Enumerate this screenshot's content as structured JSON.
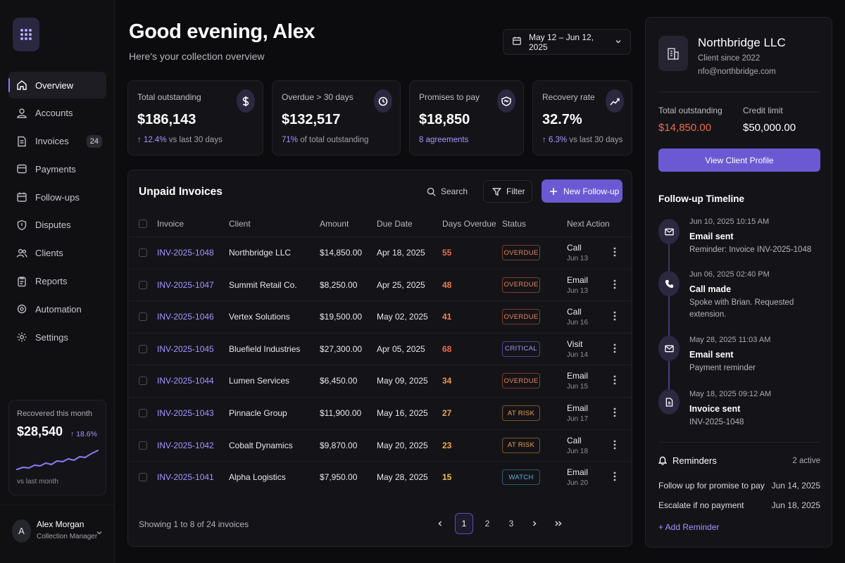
{
  "nav": [
    {
      "label": "Overview",
      "icon": "home-icon",
      "active": true
    },
    {
      "label": "Accounts",
      "icon": "accounts-icon"
    },
    {
      "label": "Invoices",
      "icon": "invoice-icon",
      "badge": "24"
    },
    {
      "label": "Payments",
      "icon": "wallet-icon"
    },
    {
      "label": "Follow-ups",
      "icon": "calendar-icon"
    },
    {
      "label": "Disputes",
      "icon": "shield-icon"
    },
    {
      "label": "Clients",
      "icon": "users-icon"
    },
    {
      "label": "Reports",
      "icon": "clipboard-icon"
    },
    {
      "label": "Automation",
      "icon": "automation-icon"
    },
    {
      "label": "Settings",
      "icon": "gear-icon"
    }
  ],
  "recovered": {
    "label": "Recovered this month",
    "value": "$28,540",
    "delta": "↑ 18.6%",
    "sub": "vs last month"
  },
  "user": {
    "initial": "A",
    "name": "Alex Morgan",
    "role": "Collection Manager"
  },
  "header": {
    "greeting": "Good evening, Alex",
    "subtitle": "Here's your collection overview",
    "date_range": "May 12 – Jun 12, 2025"
  },
  "kpis": [
    {
      "label": "Total outstanding",
      "value": "$186,143",
      "sub_accent": "↑ 12.4%",
      "sub_rest": " vs last 30 days",
      "icon": "dollar-icon"
    },
    {
      "label": "Overdue > 30 days",
      "value": "$132,517",
      "sub_accent": "71%",
      "sub_rest": " of total outstanding",
      "icon": "clock-icon"
    },
    {
      "label": "Promises to pay",
      "value": "$18,850",
      "sub_accent": "8 agreements",
      "sub_rest": "",
      "icon": "handshake-icon"
    },
    {
      "label": "Recovery rate",
      "value": "32.7%",
      "sub_accent": "↑ 6.3%",
      "sub_rest": " vs last 30 days",
      "icon": "trend-up-icon"
    }
  ],
  "table": {
    "title": "Unpaid Invoices",
    "search_label": "Search",
    "filter_label": "Filter",
    "new_label": "New Follow-up",
    "columns": [
      "Invoice",
      "Client",
      "Amount",
      "Due Date",
      "Days Overdue",
      "Status",
      "Next Action"
    ],
    "rows": [
      {
        "invoice": "INV-2025-1048",
        "client": "Northbridge LLC",
        "amount": "$14,850.00",
        "due": "Apr 18, 2025",
        "days": "55",
        "status": "OVERDUE",
        "action": "Call",
        "action_date": "Jun 13"
      },
      {
        "invoice": "INV-2025-1047",
        "client": "Summit Retail Co.",
        "amount": "$8,250.00",
        "due": "Apr 25, 2025",
        "days": "48",
        "status": "OVERDUE",
        "action": "Email",
        "action_date": "Jun 13"
      },
      {
        "invoice": "INV-2025-1046",
        "client": "Vertex Solutions",
        "amount": "$19,500.00",
        "due": "May 02, 2025",
        "days": "41",
        "status": "OVERDUE",
        "action": "Call",
        "action_date": "Jun 16"
      },
      {
        "invoice": "INV-2025-1045",
        "client": "Bluefield Industries",
        "amount": "$27,300.00",
        "due": "Apr 05, 2025",
        "days": "68",
        "status": "CRITICAL",
        "action": "Visit",
        "action_date": "Jun 14"
      },
      {
        "invoice": "INV-2025-1044",
        "client": "Lumen Services",
        "amount": "$6,450.00",
        "due": "May 09, 2025",
        "days": "34",
        "status": "OVERDUE",
        "action": "Email",
        "action_date": "Jun 15"
      },
      {
        "invoice": "INV-2025-1043",
        "client": "Pinnacle Group",
        "amount": "$11,900.00",
        "due": "May 16, 2025",
        "days": "27",
        "status": "AT RISK",
        "action": "Email",
        "action_date": "Jun 17"
      },
      {
        "invoice": "INV-2025-1042",
        "client": "Cobalt Dynamics",
        "amount": "$9,870.00",
        "due": "May 20, 2025",
        "days": "23",
        "status": "AT RISK",
        "action": "Call",
        "action_date": "Jun 18"
      },
      {
        "invoice": "INV-2025-1041",
        "client": "Alpha Logistics",
        "amount": "$7,950.00",
        "due": "May 28, 2025",
        "days": "15",
        "status": "WATCH",
        "action": "Email",
        "action_date": "Jun 20"
      }
    ],
    "showing": "Showing 1 to 8 of 24 invoices",
    "pages": [
      "1",
      "2",
      "3"
    ],
    "current_page": "1"
  },
  "status_colors": {
    "OVERDUE": {
      "text": "#e8845a",
      "border": "#7a3d2a"
    },
    "CRITICAL": {
      "text": "#a495ff",
      "border": "#4a4290"
    },
    "AT RISK": {
      "text": "#e8a24a",
      "border": "#7a5424"
    },
    "WATCH": {
      "text": "#5ab4d8",
      "border": "#275c73"
    }
  },
  "days_colors": [
    "#ef6a4d",
    "#ef7d4f",
    "#ef8550",
    "#ef6a4d",
    "#ef9450",
    "#f0a24d",
    "#f0a84d",
    "#f0c04d"
  ],
  "client": {
    "name": "Northbridge LLC",
    "since": "Client since 2022",
    "email": "nfo@northbridge.com",
    "outstanding_label": "Total outstanding",
    "outstanding_value": "$14,850.00",
    "credit_label": "Credit limit",
    "credit_value": "$50,000.00",
    "view_label": "View Client Profile"
  },
  "timeline": {
    "title": "Follow-up Timeline",
    "items": [
      {
        "when": "Jun 10, 2025   10:15 AM",
        "what": "Email sent",
        "desc": "Reminder: Invoice INV-2025-1048",
        "icon": "mail-icon"
      },
      {
        "when": "Jun 06, 2025   02:40 PM",
        "what": "Call made",
        "desc": "Spoke with Brian. Requested extension.",
        "icon": "phone-icon"
      },
      {
        "when": "May 28, 2025   11:03 AM",
        "what": "Email sent",
        "desc": "Payment reminder",
        "icon": "mail-icon"
      },
      {
        "when": "May 18, 2025   09:12 AM",
        "what": "Invoice sent",
        "desc": "INV-2025-1048",
        "icon": "document-icon"
      }
    ]
  },
  "reminders": {
    "title": "Reminders",
    "count": "2 active",
    "items": [
      {
        "text": "Follow up for promise to pay",
        "date": "Jun 14, 2025"
      },
      {
        "text": "Escalate if no payment",
        "date": "Jun 18, 2025"
      }
    ],
    "add_label": "+ Add Reminder"
  },
  "colors": {
    "accent": "#6b59d3",
    "accent_text": "#a495ff",
    "danger": "#ef6a4d"
  }
}
